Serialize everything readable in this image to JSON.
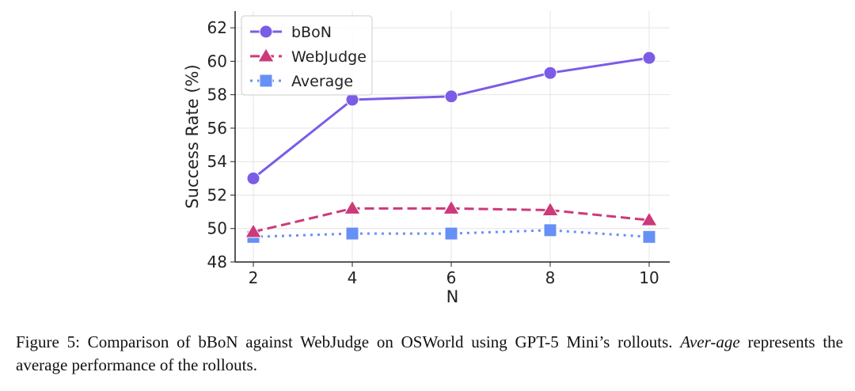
{
  "chart_data": {
    "type": "line",
    "xlabel": "N",
    "ylabel": "Success Rate (%)",
    "x": [
      2,
      4,
      6,
      8,
      10
    ],
    "xlim": [
      1.6,
      10.4
    ],
    "ylim": [
      48,
      63
    ],
    "xticks": [
      2,
      4,
      6,
      8,
      10
    ],
    "yticks": [
      48,
      50,
      52,
      54,
      56,
      58,
      60,
      62
    ],
    "grid": true,
    "legend_position": "top-left",
    "series": [
      {
        "name": "bBoN",
        "values": [
          53.0,
          57.7,
          57.9,
          59.3,
          60.2
        ],
        "color": "#7B5CE6",
        "style": "solid",
        "marker": "circle"
      },
      {
        "name": "WebJudge",
        "values": [
          49.8,
          51.2,
          51.2,
          51.1,
          50.5
        ],
        "color": "#CC3A7A",
        "style": "dashed",
        "marker": "triangle"
      },
      {
        "name": "Average",
        "values": [
          49.5,
          49.7,
          49.7,
          49.9,
          49.5
        ],
        "color": "#6690F5",
        "style": "dotted",
        "marker": "square"
      }
    ]
  },
  "caption": {
    "prefix": "Figure 5: Comparison of bBoN against WebJudge on OSWorld using GPT-5 Mini’s rollouts. ",
    "italic": "Aver-age",
    "suffix": " represents the average performance of the rollouts."
  }
}
